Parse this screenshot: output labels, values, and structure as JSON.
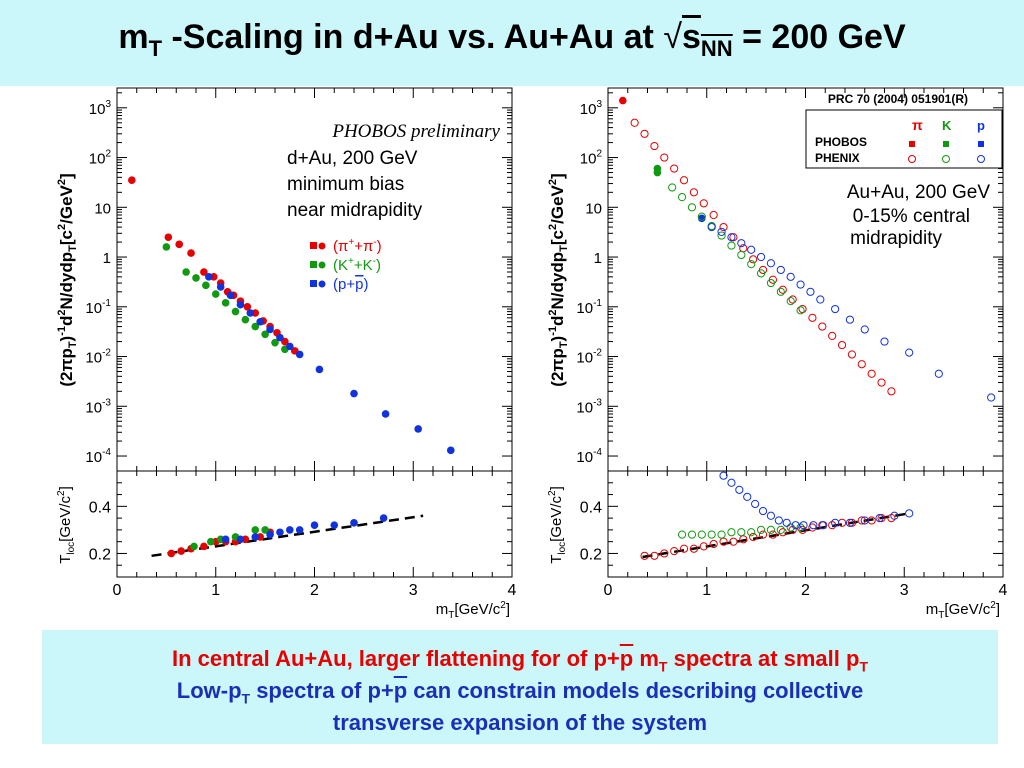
{
  "title": {
    "main": "m",
    "sub_T": "T",
    "rest": " -Scaling in d+Au vs. Au+Au at ",
    "sqrt": "√",
    "s": "s",
    "sub_NN": "NN",
    "tail": " = 200 GeV"
  },
  "colors": {
    "title_bg": "#ccf7fa",
    "red": "#e60000",
    "green": "#119911",
    "blue": "#1133dd",
    "dark_blue": "#1a2fb8"
  },
  "caption": {
    "line1_a": "In central Au+Au, larger flattening for of p+",
    "line1_pbar": "p",
    "line1_b": " m",
    "line1_sub": "T",
    "line1_c": " spectra at small p",
    "line1_sub2": "T",
    "line2_a": "Low-p",
    "line2_sub": "T",
    "line2_b": " spectra of p+",
    "line2_pbar": "p",
    "line2_c": " can constrain models describing collective",
    "line3": "transverse expansion of the system"
  },
  "chart_data": [
    {
      "type": "scatter",
      "panel": "left-top",
      "ylog": true,
      "xlim": [
        0,
        4
      ],
      "ylim": [
        5e-05,
        2500
      ],
      "ylabel": "(2πpT)-1d2N/dydpT[c2/GeV2]",
      "y_ticks": [
        "10-4",
        "10-3",
        "10-2",
        "10-1",
        "1",
        "10",
        "102",
        "103"
      ],
      "annotations": [
        "PHOBOS preliminary",
        "d+Au, 200 GeV",
        "minimum bias",
        "near midrapidity"
      ],
      "legend": [
        "(π++π-)",
        "(K++K-)",
        "(p+p)"
      ],
      "series": [
        {
          "name": "(π++π-)",
          "color": "#e60000",
          "points": [
            [
              0.15,
              35
            ],
            [
              0.52,
              2.5
            ],
            [
              0.63,
              1.8
            ],
            [
              0.75,
              1.2
            ],
            [
              0.88,
              0.5
            ],
            [
              0.98,
              0.4
            ],
            [
              1.05,
              0.3
            ],
            [
              1.12,
              0.2
            ],
            [
              1.18,
              0.17
            ],
            [
              1.25,
              0.13
            ],
            [
              1.32,
              0.1
            ],
            [
              1.4,
              0.075
            ],
            [
              1.48,
              0.052
            ],
            [
              1.55,
              0.04
            ],
            [
              1.62,
              0.03
            ],
            [
              1.7,
              0.02
            ],
            [
              1.8,
              0.013
            ]
          ]
        },
        {
          "name": "(K++K-)",
          "color": "#119911",
          "points": [
            [
              0.5,
              1.6
            ],
            [
              0.7,
              0.5
            ],
            [
              0.8,
              0.38
            ],
            [
              0.9,
              0.27
            ],
            [
              1.0,
              0.18
            ],
            [
              1.1,
              0.12
            ],
            [
              1.2,
              0.08
            ],
            [
              1.3,
              0.055
            ],
            [
              1.4,
              0.04
            ],
            [
              1.5,
              0.028
            ],
            [
              1.6,
              0.019
            ],
            [
              1.7,
              0.014
            ]
          ]
        },
        {
          "name": "(p+p)",
          "color": "#1133dd",
          "points": [
            [
              0.93,
              0.4
            ],
            [
              1.05,
              0.25
            ],
            [
              1.15,
              0.17
            ],
            [
              1.25,
              0.11
            ],
            [
              1.35,
              0.075
            ],
            [
              1.45,
              0.05
            ],
            [
              1.55,
              0.035
            ],
            [
              1.65,
              0.024
            ],
            [
              1.75,
              0.016
            ],
            [
              1.85,
              0.011
            ],
            [
              2.05,
              0.0055
            ],
            [
              2.4,
              0.0018
            ],
            [
              2.72,
              0.0007
            ],
            [
              3.05,
              0.00035
            ],
            [
              3.38,
              0.00013
            ]
          ]
        }
      ]
    },
    {
      "type": "scatter",
      "panel": "left-bottom",
      "xlim": [
        0,
        4
      ],
      "ylim": [
        0.1,
        0.55
      ],
      "xlabel": "mT[GeV/c2]",
      "ylabel": "Tloc[GeV/c2]",
      "x_ticks": [
        "0",
        "1",
        "2",
        "3",
        "4"
      ],
      "y_ticks": [
        "0.2",
        "0.4"
      ],
      "fit_line": [
        [
          0.35,
          0.19
        ],
        [
          3.1,
          0.36
        ]
      ],
      "series": [
        {
          "name": "(π++π-)",
          "color": "#e60000",
          "points": [
            [
              0.55,
              0.2
            ],
            [
              0.65,
              0.21
            ],
            [
              0.75,
              0.22
            ],
            [
              0.88,
              0.23
            ],
            [
              1.0,
              0.25
            ],
            [
              1.1,
              0.25
            ],
            [
              1.2,
              0.25
            ],
            [
              1.3,
              0.26
            ],
            [
              1.45,
              0.27
            ],
            [
              1.55,
              0.29
            ]
          ]
        },
        {
          "name": "(K++K-)",
          "color": "#119911",
          "points": [
            [
              0.78,
              0.23
            ],
            [
              0.95,
              0.25
            ],
            [
              1.05,
              0.26
            ],
            [
              1.2,
              0.27
            ],
            [
              1.4,
              0.3
            ],
            [
              1.5,
              0.3
            ]
          ]
        },
        {
          "name": "(p+p)",
          "color": "#1133dd",
          "points": [
            [
              1.1,
              0.26
            ],
            [
              1.25,
              0.26
            ],
            [
              1.4,
              0.27
            ],
            [
              1.55,
              0.28
            ],
            [
              1.65,
              0.29
            ],
            [
              1.75,
              0.3
            ],
            [
              1.85,
              0.3
            ],
            [
              2.0,
              0.32
            ],
            [
              2.2,
              0.32
            ],
            [
              2.4,
              0.33
            ],
            [
              2.7,
              0.35
            ]
          ]
        }
      ]
    },
    {
      "type": "scatter",
      "panel": "right-top",
      "ylog": true,
      "xlim": [
        0,
        4
      ],
      "ylim": [
        5e-05,
        2500
      ],
      "ylabel": "(2πpT)-1d2N/dydpT[c2/GeV2]",
      "y_ticks": [
        "10-4",
        "10-3",
        "10-2",
        "10-1",
        "1",
        "10",
        "102",
        "103"
      ],
      "reference": "PRC 70 (2004) 051901(R)",
      "annotations": [
        "Au+Au, 200 GeV",
        "0-15% central",
        "midrapidity"
      ],
      "legend": {
        "columns": [
          "π",
          "K",
          "p"
        ],
        "rows": [
          "PHOBOS",
          "PHENIX"
        ]
      },
      "series": [
        {
          "name": "PHOBOS π",
          "color": "#e60000",
          "filled": true,
          "points": [
            [
              0.15,
              1400
            ]
          ]
        },
        {
          "name": "PHOBOS K",
          "color": "#119911",
          "filled": true,
          "points": [
            [
              0.5,
              50
            ],
            [
              0.5,
              60
            ]
          ]
        },
        {
          "name": "PHOBOS p",
          "color": "#1133dd",
          "filled": true,
          "points": [
            [
              0.95,
              6
            ]
          ]
        },
        {
          "name": "PHENIX π",
          "color": "#e60000",
          "filled": false,
          "points": [
            [
              0.27,
              500
            ],
            [
              0.37,
              300
            ],
            [
              0.47,
              170
            ],
            [
              0.57,
              100
            ],
            [
              0.67,
              60
            ],
            [
              0.77,
              35
            ],
            [
              0.87,
              20
            ],
            [
              0.97,
              12
            ],
            [
              1.07,
              7
            ],
            [
              1.17,
              4
            ],
            [
              1.27,
              2.5
            ],
            [
              1.37,
              1.5
            ],
            [
              1.47,
              0.9
            ],
            [
              1.57,
              0.55
            ],
            [
              1.67,
              0.35
            ],
            [
              1.77,
              0.22
            ],
            [
              1.87,
              0.14
            ],
            [
              1.97,
              0.09
            ],
            [
              2.07,
              0.06
            ],
            [
              2.17,
              0.04
            ],
            [
              2.27,
              0.026
            ],
            [
              2.37,
              0.017
            ],
            [
              2.47,
              0.011
            ],
            [
              2.57,
              0.007
            ],
            [
              2.67,
              0.0045
            ],
            [
              2.77,
              0.003
            ],
            [
              2.87,
              0.002
            ]
          ]
        },
        {
          "name": "PHENIX K",
          "color": "#119911",
          "filled": false,
          "points": [
            [
              0.65,
              25
            ],
            [
              0.75,
              16
            ],
            [
              0.85,
              10
            ],
            [
              0.95,
              6.5
            ],
            [
              1.05,
              4.2
            ],
            [
              1.15,
              2.7
            ],
            [
              1.25,
              1.7
            ],
            [
              1.35,
              1.1
            ],
            [
              1.45,
              0.72
            ],
            [
              1.55,
              0.47
            ],
            [
              1.65,
              0.3
            ],
            [
              1.75,
              0.2
            ],
            [
              1.85,
              0.13
            ],
            [
              1.95,
              0.085
            ]
          ]
        },
        {
          "name": "PHENIX p",
          "color": "#1133dd",
          "filled": false,
          "points": [
            [
              1.05,
              4
            ],
            [
              1.15,
              3.2
            ],
            [
              1.25,
              2.5
            ],
            [
              1.35,
              1.9
            ],
            [
              1.45,
              1.4
            ],
            [
              1.55,
              1.0
            ],
            [
              1.65,
              0.75
            ],
            [
              1.75,
              0.55
            ],
            [
              1.85,
              0.4
            ],
            [
              1.95,
              0.28
            ],
            [
              2.05,
              0.2
            ],
            [
              2.15,
              0.14
            ],
            [
              2.3,
              0.09
            ],
            [
              2.45,
              0.055
            ],
            [
              2.6,
              0.035
            ],
            [
              2.8,
              0.02
            ],
            [
              3.05,
              0.012
            ],
            [
              3.35,
              0.0045
            ],
            [
              3.88,
              0.0015
            ]
          ]
        }
      ]
    },
    {
      "type": "scatter",
      "panel": "right-bottom",
      "xlim": [
        0,
        4
      ],
      "ylim": [
        0.1,
        0.55
      ],
      "xlabel": "mT[GeV/c2]",
      "ylabel": "Tloc[GeV/c2]",
      "x_ticks": [
        "0",
        "1",
        "2",
        "3",
        "4"
      ],
      "y_ticks": [
        "0.2",
        "0.4"
      ],
      "fit_line": [
        [
          0.35,
          0.185
        ],
        [
          3.05,
          0.37
        ]
      ],
      "series": [
        {
          "name": "PHENIX π",
          "color": "#e60000",
          "filled": false,
          "points": [
            [
              0.37,
              0.19
            ],
            [
              0.47,
              0.19
            ],
            [
              0.57,
              0.2
            ],
            [
              0.67,
              0.21
            ],
            [
              0.77,
              0.22
            ],
            [
              0.87,
              0.22
            ],
            [
              0.97,
              0.23
            ],
            [
              1.07,
              0.24
            ],
            [
              1.17,
              0.25
            ],
            [
              1.27,
              0.25
            ],
            [
              1.37,
              0.26
            ],
            [
              1.47,
              0.27
            ],
            [
              1.57,
              0.28
            ],
            [
              1.67,
              0.28
            ],
            [
              1.77,
              0.29
            ],
            [
              1.87,
              0.3
            ],
            [
              1.97,
              0.3
            ],
            [
              2.07,
              0.31
            ],
            [
              2.17,
              0.32
            ],
            [
              2.27,
              0.32
            ],
            [
              2.37,
              0.33
            ],
            [
              2.47,
              0.33
            ],
            [
              2.57,
              0.34
            ],
            [
              2.67,
              0.34
            ],
            [
              2.77,
              0.35
            ],
            [
              2.87,
              0.35
            ]
          ]
        },
        {
          "name": "PHENIX K",
          "color": "#119911",
          "filled": false,
          "points": [
            [
              0.75,
              0.28
            ],
            [
              0.85,
              0.28
            ],
            [
              0.95,
              0.28
            ],
            [
              1.05,
              0.28
            ],
            [
              1.15,
              0.28
            ],
            [
              1.25,
              0.29
            ],
            [
              1.35,
              0.29
            ],
            [
              1.45,
              0.29
            ],
            [
              1.55,
              0.3
            ],
            [
              1.65,
              0.3
            ],
            [
              1.75,
              0.3
            ],
            [
              1.85,
              0.31
            ],
            [
              1.95,
              0.31
            ]
          ]
        },
        {
          "name": "PHENIX p",
          "color": "#1133dd",
          "filled": false,
          "points": [
            [
              1.17,
              0.53
            ],
            [
              1.25,
              0.5
            ],
            [
              1.33,
              0.47
            ],
            [
              1.41,
              0.44
            ],
            [
              1.49,
              0.41
            ],
            [
              1.57,
              0.38
            ],
            [
              1.65,
              0.36
            ],
            [
              1.73,
              0.34
            ],
            [
              1.81,
              0.33
            ],
            [
              1.9,
              0.32
            ],
            [
              1.98,
              0.32
            ],
            [
              2.08,
              0.32
            ],
            [
              2.18,
              0.32
            ],
            [
              2.3,
              0.33
            ],
            [
              2.45,
              0.33
            ],
            [
              2.6,
              0.34
            ],
            [
              2.75,
              0.35
            ],
            [
              2.9,
              0.36
            ],
            [
              3.05,
              0.37
            ]
          ]
        }
      ]
    }
  ]
}
